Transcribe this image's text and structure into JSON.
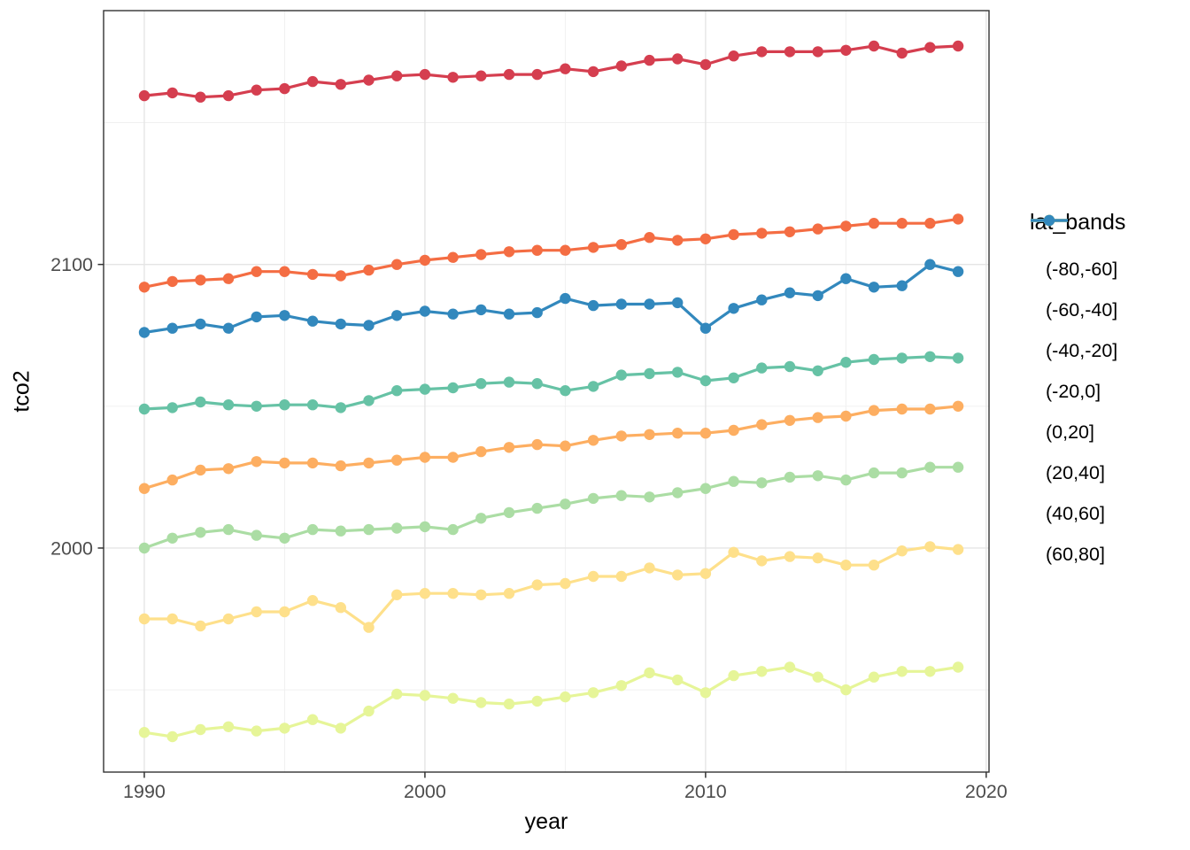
{
  "chart_data": {
    "type": "line",
    "title": "",
    "xlabel": "year",
    "ylabel": "tco2",
    "legend_title": "lat_bands",
    "legend_position": "right",
    "grid": true,
    "xlim": [
      1988.55,
      2020.1
    ],
    "ylim": [
      1921,
      2189.5
    ],
    "x_ticks_major": [
      1990,
      2000,
      2010,
      2020
    ],
    "x_ticks_minor": [
      1995,
      2005,
      2015
    ],
    "y_ticks_major": [
      2000,
      2100
    ],
    "y_ticks_minor": [
      1950,
      2050,
      2150
    ],
    "x_tick_labels": [
      "1990",
      "2000",
      "2010",
      "2020"
    ],
    "y_tick_labels": [
      "2000",
      "2100"
    ],
    "x": [
      1990,
      1991,
      1992,
      1993,
      1994,
      1995,
      1996,
      1997,
      1998,
      1999,
      2000,
      2001,
      2002,
      2003,
      2004,
      2005,
      2006,
      2007,
      2008,
      2009,
      2010,
      2011,
      2012,
      2013,
      2014,
      2015,
      2016,
      2017,
      2018,
      2019
    ],
    "series": [
      {
        "name": "(-80,-60]",
        "color": "#d53e4f",
        "values": [
          2159.5,
          2160.5,
          2159,
          2159.5,
          2161.5,
          2162,
          2164.5,
          2163.5,
          2165,
          2166.5,
          2167,
          2166,
          2166.5,
          2167,
          2167,
          2169,
          2168,
          2170,
          2172,
          2172.5,
          2170.5,
          2173.5,
          2175,
          2175,
          2175,
          2175.5,
          2177,
          2174.5,
          2176.5,
          2177
        ]
      },
      {
        "name": "(-60,-40]",
        "color": "#f46d43",
        "values": [
          2092,
          2094,
          2094.5,
          2095,
          2097.5,
          2097.5,
          2096.5,
          2096,
          2098,
          2100,
          2101.5,
          2102.5,
          2103.5,
          2104.5,
          2105,
          2105,
          2106,
          2107,
          2109.5,
          2108.5,
          2109,
          2110.5,
          2111,
          2111.5,
          2112.5,
          2113.5,
          2114.5,
          2114.5,
          2114.5,
          2116
        ]
      },
      {
        "name": "(-40,-20]",
        "color": "#fdae61",
        "values": [
          2021,
          2024,
          2027.5,
          2028,
          2030.5,
          2030,
          2030,
          2029,
          2030,
          2031,
          2032,
          2032,
          2034,
          2035.5,
          2036.5,
          2036,
          2038,
          2039.5,
          2040,
          2040.5,
          2040.5,
          2041.5,
          2043.5,
          2045,
          2046,
          2046.5,
          2048.5,
          2049,
          2049,
          2050
        ]
      },
      {
        "name": "(-20,0]",
        "color": "#fee08b",
        "values": [
          1975,
          1975,
          1972.5,
          1975,
          1977.5,
          1977.5,
          1981.5,
          1979,
          1972,
          1983.5,
          1984,
          1984,
          1983.5,
          1984,
          1987,
          1987.5,
          1990,
          1990,
          1993,
          1990.5,
          1991,
          1998.5,
          1995.5,
          1997,
          1996.5,
          1994,
          1994,
          1999,
          2000.5,
          1999.5
        ]
      },
      {
        "name": "(0,20]",
        "color": "#e6f598",
        "values": [
          1935,
          1933.5,
          1936,
          1937,
          1935.5,
          1936.5,
          1939.5,
          1936.5,
          1942.5,
          1948.5,
          1948,
          1947,
          1945.5,
          1945,
          1946,
          1947.5,
          1949,
          1951.5,
          1956,
          1953.5,
          1949,
          1955,
          1956.5,
          1958,
          1954.5,
          1950,
          1954.5,
          1956.5,
          1956.5,
          1958
        ]
      },
      {
        "name": "(20,40]",
        "color": "#abdda4",
        "values": [
          2000,
          2003.5,
          2005.5,
          2006.5,
          2004.5,
          2003.5,
          2006.5,
          2006,
          2006.5,
          2007,
          2007.5,
          2006.5,
          2010.5,
          2012.5,
          2014,
          2015.5,
          2017.5,
          2018.5,
          2018,
          2019.5,
          2021,
          2023.5,
          2023,
          2025,
          2025.5,
          2024,
          2026.5,
          2026.5,
          2028.5,
          2028.5
        ]
      },
      {
        "name": "(40,60]",
        "color": "#66c2a5",
        "values": [
          2049,
          2049.5,
          2051.5,
          2050.5,
          2050,
          2050.5,
          2050.5,
          2049.5,
          2052,
          2055.5,
          2056,
          2056.5,
          2058,
          2058.5,
          2058,
          2055.5,
          2057,
          2061,
          2061.5,
          2062,
          2059,
          2060,
          2063.5,
          2064,
          2062.5,
          2065.5,
          2066.5,
          2067,
          2067.5,
          2067
        ]
      },
      {
        "name": "(60,80]",
        "color": "#3288bd",
        "values": [
          2076,
          2077.5,
          2079,
          2077.5,
          2081.5,
          2082,
          2080,
          2079,
          2078.5,
          2082,
          2083.5,
          2082.5,
          2084,
          2082.5,
          2083,
          2088,
          2085.5,
          2086,
          2086,
          2086.5,
          2077.5,
          2084.5,
          2087.5,
          2090,
          2089,
          2095,
          2092,
          2092.5,
          2100,
          2097.5
        ]
      }
    ]
  },
  "theme": {
    "panel_background": "#ffffff",
    "panel_border": "#333333",
    "grid_major": "#e5e5e5",
    "grid_minor": "#f0f0f0",
    "tick_color": "#333333",
    "tick_label_color": "#4d4d4d"
  }
}
